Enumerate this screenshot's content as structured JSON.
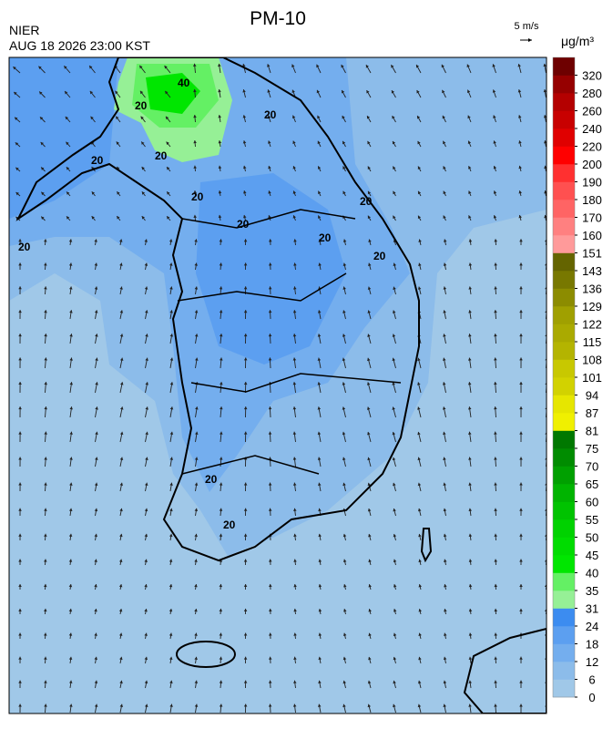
{
  "header": {
    "title": "PM-10",
    "agency": "NIER",
    "datetime": "AUG 18 2026 23:00 KST",
    "wind_scale": "5 m/s"
  },
  "colorbar": {
    "unit": "μg/m³",
    "ticks": [
      0,
      6,
      12,
      18,
      24,
      31,
      35,
      40,
      45,
      50,
      55,
      60,
      65,
      70,
      75,
      81,
      87,
      94,
      101,
      108,
      115,
      122,
      129,
      136,
      143,
      151,
      160,
      170,
      180,
      190,
      200,
      220,
      240,
      260,
      280,
      320
    ],
    "colors": [
      "#a0c8e8",
      "#8cbcea",
      "#74aeee",
      "#5c9ff0",
      "#3c8cf0",
      "#96f096",
      "#64f064",
      "#00e600",
      "#00dc00",
      "#00d200",
      "#00c300",
      "#00b400",
      "#00a000",
      "#008c00",
      "#007800",
      "#f0f000",
      "#e6e600",
      "#d2d200",
      "#c8c800",
      "#b4b400",
      "#aaaa00",
      "#a0a000",
      "#8c8c00",
      "#787800",
      "#646400",
      "#ff9a9a",
      "#ff8080",
      "#ff6464",
      "#ff5050",
      "#ff3030",
      "#ff0000",
      "#e00000",
      "#c80000",
      "#b40000",
      "#960000",
      "#6e0000"
    ]
  },
  "contour_labels": [
    "20",
    "40",
    "20",
    "20",
    "20",
    "20",
    "20",
    "20",
    "20",
    "20",
    "20",
    "20",
    "20"
  ]
}
